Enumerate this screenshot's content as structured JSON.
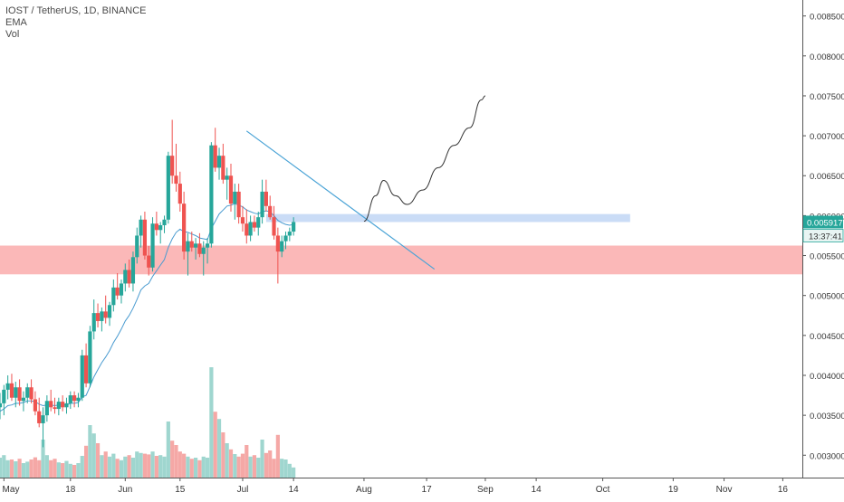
{
  "header": {
    "symbol_line": "IOST / TetherUS, 1D, BINANCE",
    "ema_label": "EMA",
    "vol_label": "Vol"
  },
  "price_tag": {
    "value": "0.005917",
    "timer": "13:37:41",
    "color": "#26a69a"
  },
  "colors": {
    "up": "#26a69a",
    "down": "#ef5350",
    "up_vol": "#9fd6cf",
    "down_vol": "#f5a8a6",
    "ema": "#4a9bd0",
    "trendline": "#4aa3d6",
    "support_zone": "#fbb4b4",
    "resistance_zone": "#c7daf5",
    "projection": "#333333"
  },
  "chart_data": {
    "type": "candlestick",
    "title": "IOST / TetherUS, 1D, BINANCE",
    "y_axis": {
      "ticks": [
        "0.008500",
        "0.008000",
        "0.007500",
        "0.007000",
        "0.006500",
        "0.006000",
        "0.005500",
        "0.005000",
        "0.004500",
        "0.004000",
        "0.003500",
        "0.003000"
      ],
      "range": [
        0.00272,
        0.0087
      ]
    },
    "x_axis": {
      "ticks": [
        {
          "label": "May",
          "date": "2019-05-01"
        },
        {
          "label": "18",
          "date": "2019-05-18"
        },
        {
          "label": "Jun",
          "date": "2019-06-01"
        },
        {
          "label": "15",
          "date": "2019-06-15"
        },
        {
          "label": "Jul",
          "date": "2019-07-01"
        },
        {
          "label": "14",
          "date": "2019-07-14"
        },
        {
          "label": "Aug",
          "date": "2019-08-01"
        },
        {
          "label": "17",
          "date": "2019-08-17"
        },
        {
          "label": "Sep",
          "date": "2019-09-01"
        },
        {
          "label": "14",
          "date": "2019-09-14"
        },
        {
          "label": "Oct",
          "date": "2019-10-01"
        },
        {
          "label": "19",
          "date": "2019-10-19"
        },
        {
          "label": "Nov",
          "date": "2019-11-01"
        },
        {
          "label": "16",
          "date": "2019-11-16"
        }
      ],
      "range": [
        "2019-04-30",
        "2019-11-21"
      ]
    },
    "candles_start_date": "2019-04-30",
    "candles": [
      [
        0.0036,
        0.00378,
        0.00345,
        0.00365
      ],
      [
        0.00365,
        0.00388,
        0.0035,
        0.00382
      ],
      [
        0.00382,
        0.004,
        0.0037,
        0.0039
      ],
      [
        0.0039,
        0.00402,
        0.00368,
        0.00372
      ],
      [
        0.00372,
        0.00392,
        0.0036,
        0.00385
      ],
      [
        0.00385,
        0.00395,
        0.00362,
        0.00368
      ],
      [
        0.00368,
        0.0038,
        0.00355,
        0.00372
      ],
      [
        0.00372,
        0.0039,
        0.00365,
        0.00385
      ],
      [
        0.00385,
        0.00395,
        0.00365,
        0.0037
      ],
      [
        0.0037,
        0.0038,
        0.0035,
        0.00355
      ],
      [
        0.00355,
        0.00372,
        0.00335,
        0.0034
      ],
      [
        0.0034,
        0.0036,
        0.0031,
        0.0035
      ],
      [
        0.0035,
        0.00375,
        0.00342,
        0.00368
      ],
      [
        0.00368,
        0.00382,
        0.00355,
        0.0036
      ],
      [
        0.0036,
        0.00372,
        0.00352,
        0.00358
      ],
      [
        0.00358,
        0.00372,
        0.0035,
        0.00367
      ],
      [
        0.00367,
        0.00375,
        0.00355,
        0.0036
      ],
      [
        0.0036,
        0.00372,
        0.00352,
        0.00365
      ],
      [
        0.00365,
        0.0038,
        0.00358,
        0.00375
      ],
      [
        0.00375,
        0.0038,
        0.0036,
        0.00368
      ],
      [
        0.00368,
        0.00378,
        0.0036,
        0.00372
      ],
      [
        0.00372,
        0.00432,
        0.00368,
        0.00425
      ],
      [
        0.00425,
        0.0044,
        0.00385,
        0.0039
      ],
      [
        0.0039,
        0.00462,
        0.00385,
        0.00455
      ],
      [
        0.00455,
        0.00495,
        0.00445,
        0.00478
      ],
      [
        0.00478,
        0.0049,
        0.0046,
        0.00468
      ],
      [
        0.00468,
        0.00485,
        0.00455,
        0.0048
      ],
      [
        0.0048,
        0.005,
        0.00465,
        0.00472
      ],
      [
        0.00472,
        0.00492,
        0.00462,
        0.00488
      ],
      [
        0.00488,
        0.0052,
        0.0048,
        0.0051
      ],
      [
        0.0051,
        0.00528,
        0.00495,
        0.005
      ],
      [
        0.005,
        0.0052,
        0.0049,
        0.00515
      ],
      [
        0.00515,
        0.0054,
        0.00505,
        0.00532
      ],
      [
        0.00532,
        0.00545,
        0.0051,
        0.00515
      ],
      [
        0.00515,
        0.00555,
        0.00505,
        0.00548
      ],
      [
        0.00548,
        0.00585,
        0.0054,
        0.00575
      ],
      [
        0.00575,
        0.006,
        0.0056,
        0.00595
      ],
      [
        0.00595,
        0.00605,
        0.00545,
        0.0055
      ],
      [
        0.0055,
        0.00562,
        0.00525,
        0.00535
      ],
      [
        0.00535,
        0.00598,
        0.0053,
        0.0059
      ],
      [
        0.0059,
        0.00605,
        0.00575,
        0.00582
      ],
      [
        0.00582,
        0.00592,
        0.00565,
        0.00588
      ],
      [
        0.00588,
        0.006,
        0.00578,
        0.00595
      ],
      [
        0.00595,
        0.0068,
        0.0059,
        0.00675
      ],
      [
        0.00675,
        0.0072,
        0.0064,
        0.0065
      ],
      [
        0.0065,
        0.0069,
        0.0063,
        0.0064
      ],
      [
        0.0064,
        0.00655,
        0.00605,
        0.00615
      ],
      [
        0.00615,
        0.0063,
        0.00545,
        0.00555
      ],
      [
        0.00555,
        0.00578,
        0.00525,
        0.00568
      ],
      [
        0.00568,
        0.0058,
        0.00555,
        0.0056
      ],
      [
        0.0056,
        0.00572,
        0.00545,
        0.00565
      ],
      [
        0.00565,
        0.00578,
        0.00548,
        0.00552
      ],
      [
        0.00552,
        0.00568,
        0.00525,
        0.0056
      ],
      [
        0.0056,
        0.00572,
        0.0054,
        0.00565
      ],
      [
        0.00565,
        0.00692,
        0.0056,
        0.00688
      ],
      [
        0.00688,
        0.0071,
        0.00655,
        0.0066
      ],
      [
        0.0066,
        0.00685,
        0.00645,
        0.00675
      ],
      [
        0.00675,
        0.0069,
        0.0064,
        0.00645
      ],
      [
        0.00645,
        0.0066,
        0.0062,
        0.0065
      ],
      [
        0.0065,
        0.00665,
        0.00605,
        0.00615
      ],
      [
        0.00615,
        0.0064,
        0.00595,
        0.0063
      ],
      [
        0.0063,
        0.0064,
        0.0059,
        0.00598
      ],
      [
        0.00598,
        0.00612,
        0.0058,
        0.0059
      ],
      [
        0.0059,
        0.00608,
        0.00565,
        0.00575
      ],
      [
        0.00575,
        0.006,
        0.00568,
        0.00592
      ],
      [
        0.00592,
        0.006,
        0.0058,
        0.00585
      ],
      [
        0.00585,
        0.00605,
        0.00575,
        0.00598
      ],
      [
        0.00598,
        0.00645,
        0.0059,
        0.0063
      ],
      [
        0.0063,
        0.00645,
        0.00605,
        0.00612
      ],
      [
        0.00612,
        0.00625,
        0.00595,
        0.00598
      ],
      [
        0.00598,
        0.00612,
        0.0057,
        0.00575
      ],
      [
        0.00575,
        0.00585,
        0.00515,
        0.00555
      ],
      [
        0.00555,
        0.00575,
        0.00548,
        0.00568
      ],
      [
        0.00568,
        0.0058,
        0.00558,
        0.00575
      ],
      [
        0.00575,
        0.00585,
        0.00568,
        0.0058
      ],
      [
        0.0058,
        0.00598,
        0.00575,
        0.00592
      ]
    ],
    "volumes": [
      0.55,
      0.62,
      0.48,
      0.5,
      0.45,
      0.52,
      0.4,
      0.44,
      0.5,
      0.56,
      0.48,
      1.05,
      0.62,
      0.48,
      0.52,
      0.42,
      0.4,
      0.46,
      0.38,
      0.35,
      0.4,
      0.6,
      0.88,
      1.45,
      1.22,
      0.95,
      0.62,
      0.72,
      0.58,
      0.66,
      0.52,
      0.48,
      0.58,
      0.62,
      0.55,
      0.72,
      0.68,
      0.66,
      0.64,
      0.72,
      0.6,
      0.62,
      0.58,
      1.55,
      1.02,
      0.9,
      0.72,
      0.66,
      0.58,
      0.52,
      0.55,
      0.48,
      0.58,
      0.55,
      3.05,
      1.82,
      1.62,
      1.25,
      0.95,
      0.78,
      0.65,
      0.58,
      0.66,
      0.9,
      0.58,
      0.62,
      0.55,
      1.05,
      0.68,
      0.75,
      0.52,
      1.18,
      0.52,
      0.5,
      0.38,
      0.28
    ],
    "ema_values": [
      0.00355,
      0.00358,
      0.00362,
      0.00363,
      0.00365,
      0.00365,
      0.00366,
      0.00368,
      0.00368,
      0.00367,
      0.00364,
      0.00362,
      0.00363,
      0.00363,
      0.00362,
      0.00363,
      0.00363,
      0.00363,
      0.00365,
      0.00365,
      0.00366,
      0.00373,
      0.00375,
      0.00386,
      0.00398,
      0.00407,
      0.00416,
      0.00423,
      0.00431,
      0.00441,
      0.00449,
      0.00458,
      0.00468,
      0.00475,
      0.00484,
      0.00495,
      0.00507,
      0.00512,
      0.00515,
      0.00524,
      0.00531,
      0.00538,
      0.00545,
      0.0056,
      0.00571,
      0.00579,
      0.00583,
      0.0058,
      0.00579,
      0.00577,
      0.00575,
      0.00572,
      0.00571,
      0.0057,
      0.00584,
      0.00593,
      0.00602,
      0.00607,
      0.00612,
      0.00613,
      0.00615,
      0.00613,
      0.00611,
      0.00607,
      0.00605,
      0.00603,
      0.00602,
      0.00605,
      0.00606,
      0.00605,
      0.006,
      0.00594,
      0.00591,
      0.00589,
      0.00588,
      0.00589
    ],
    "annotations": {
      "support_zone": {
        "y_low": 0.005265,
        "y_high": 0.005625
      },
      "resistance_zone": {
        "date_start": "2019-07-07",
        "date_end": "2019-10-08",
        "y_low": 0.00592,
        "y_high": 0.00602
      },
      "trendline": {
        "start": {
          "date": "2019-07-02",
          "y": 0.00706
        },
        "end": {
          "date": "2019-08-19",
          "y": 0.00533
        }
      },
      "projection_path": [
        {
          "date": "2019-08-01",
          "y": 0.00593
        },
        {
          "date": "2019-08-04",
          "y": 0.00625
        },
        {
          "date": "2019-08-06",
          "y": 0.00644
        },
        {
          "date": "2019-08-09",
          "y": 0.00625
        },
        {
          "date": "2019-08-12",
          "y": 0.00614
        },
        {
          "date": "2019-08-16",
          "y": 0.00632
        },
        {
          "date": "2019-08-20",
          "y": 0.0066
        },
        {
          "date": "2019-08-24",
          "y": 0.00688
        },
        {
          "date": "2019-08-28",
          "y": 0.0071
        },
        {
          "date": "2019-08-31",
          "y": 0.00745
        },
        {
          "date": "2019-09-01",
          "y": 0.0075
        }
      ]
    }
  }
}
